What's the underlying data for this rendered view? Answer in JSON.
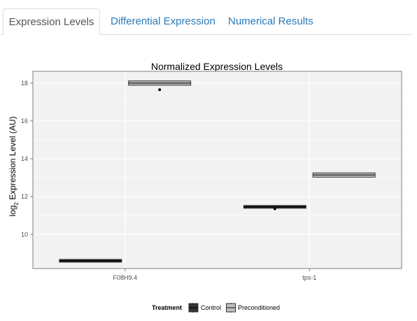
{
  "tabs": [
    {
      "label": "Expression Levels",
      "active": true
    },
    {
      "label": "Differential Expression",
      "active": false
    },
    {
      "label": "Numerical Results",
      "active": false
    }
  ],
  "colors": {
    "tab_link": "#2a7ab8",
    "panel_bg": "#f2f2f2",
    "grid": "#ffffff",
    "control_fill": "#333333",
    "preconditioned_fill": "#bfbfbf",
    "box_line": "#333333"
  },
  "chart_data": {
    "type": "box",
    "title": "Normalized Expression Levels",
    "ylabel_prefix": "log",
    "ylabel_sub": "2",
    "ylabel_rest": " Expression Level (AU)",
    "xlabel": "",
    "categories": [
      "F08H9.4",
      "tps-1"
    ],
    "ylim": [
      8.2,
      18.62
    ],
    "yticks": [
      10,
      12,
      14,
      16,
      18
    ],
    "grid": true,
    "legend": {
      "position": "bottom",
      "title": "Treatment",
      "entries": [
        "Control",
        "Preconditioned"
      ]
    },
    "series": [
      {
        "name": "Control",
        "boxes": [
          {
            "category": "F08H9.4",
            "q1": 8.58,
            "median": 8.61,
            "q3": 8.64,
            "whisker_low": 8.55,
            "whisker_high": 8.66,
            "outliers": []
          },
          {
            "category": "tps-1",
            "q1": 11.43,
            "median": 11.46,
            "q3": 11.49,
            "whisker_low": 11.41,
            "whisker_high": 11.5,
            "outliers": [
              11.36
            ]
          }
        ]
      },
      {
        "name": "Preconditioned",
        "boxes": [
          {
            "category": "F08H9.4",
            "q1": 17.93,
            "median": 18.0,
            "q3": 18.07,
            "whisker_low": 17.9,
            "whisker_high": 18.12,
            "outliers": [
              17.65
            ]
          },
          {
            "category": "tps-1",
            "q1": 13.07,
            "median": 13.14,
            "q3": 13.21,
            "whisker_low": 13.02,
            "whisker_high": 13.24,
            "outliers": []
          }
        ]
      }
    ]
  }
}
